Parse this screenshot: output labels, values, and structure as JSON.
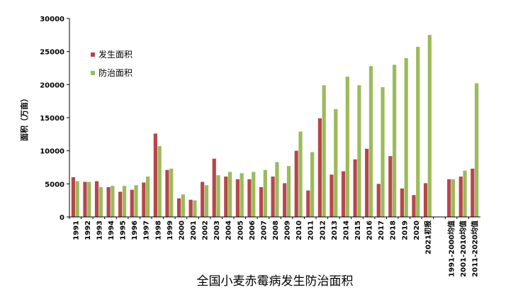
{
  "chart_data": {
    "type": "bar",
    "title": "全国小麦赤霉病发生防治面积",
    "ylabel": "面积（万亩）",
    "xlabel": "",
    "ylim": [
      0,
      30000
    ],
    "yticks": [
      0,
      5000,
      10000,
      15000,
      20000,
      25000,
      30000
    ],
    "legend_position": "top-left",
    "grid": false,
    "categories": [
      "1991",
      "1992",
      "1993",
      "1994",
      "1995",
      "1996",
      "1997",
      "1998",
      "1999",
      "2000",
      "2001",
      "2002",
      "2003",
      "2004",
      "2005",
      "2006",
      "2007",
      "2008",
      "2009",
      "2010",
      "2011",
      "2012",
      "2013",
      "2014",
      "2015",
      "2016",
      "2017",
      "2018",
      "2019",
      "2020",
      "2021初报",
      "",
      "1991-2000均值",
      "2001-2010均值",
      "2011-2020均值"
    ],
    "series": [
      {
        "name": "发生面积",
        "color": "#b5474a",
        "values": [
          6000,
          5300,
          5400,
          4500,
          3800,
          4100,
          5200,
          12600,
          7100,
          2800,
          2600,
          5300,
          8800,
          6100,
          5700,
          5700,
          4500,
          6100,
          5100,
          10000,
          4000,
          14900,
          6400,
          6900,
          8700,
          10300,
          5000,
          9200,
          4300,
          3300,
          5100,
          null,
          5700,
          6100,
          7300
        ]
      },
      {
        "name": "防治面积",
        "color": "#9bbb59",
        "values": [
          5400,
          5300,
          4500,
          4700,
          4700,
          4800,
          6100,
          10700,
          7300,
          3400,
          2500,
          4800,
          6300,
          6800,
          6600,
          6800,
          7100,
          8300,
          7700,
          12900,
          9800,
          19900,
          16300,
          21200,
          19900,
          22800,
          19600,
          23000,
          24000,
          25700,
          27500,
          null,
          5700,
          7000,
          20200
        ]
      }
    ]
  }
}
